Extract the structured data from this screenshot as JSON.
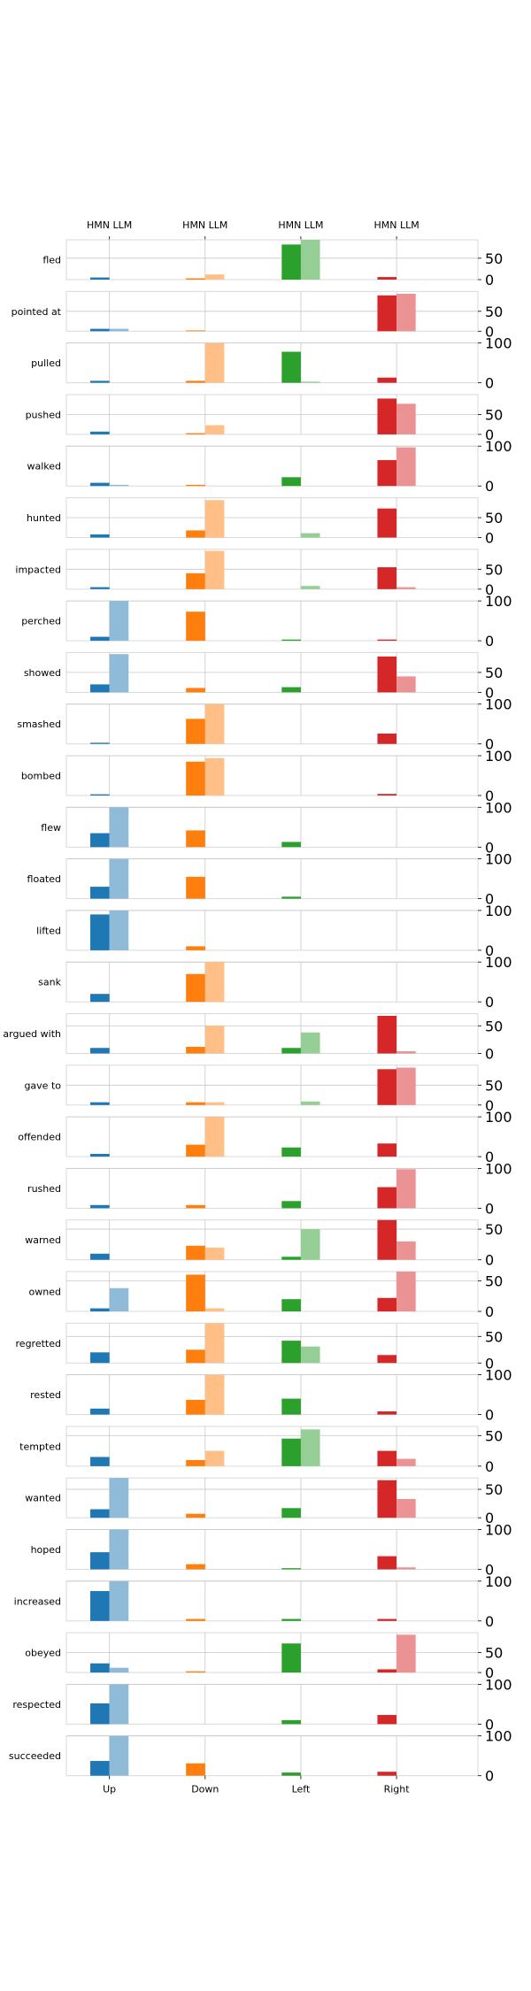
{
  "chart_data": {
    "type": "bar",
    "top_tick_label": "HMN LLM",
    "directions": [
      "Up",
      "Down",
      "Left",
      "Right"
    ],
    "direction_colors": {
      "strong": [
        "#1f77b4",
        "#ff7f0e",
        "#2ca02c",
        "#d62728"
      ],
      "light": [
        "#8fbbd9",
        "#ffbf86",
        "#95cf95",
        "#eb9394"
      ]
    },
    "series": [
      {
        "name": "HMN",
        "style": "strong"
      },
      {
        "name": "LLM",
        "style": "light"
      }
    ],
    "grid": true,
    "rows": [
      {
        "verb": "fled",
        "ylim": [
          0,
          93
        ],
        "yticks": [
          0,
          50
        ],
        "hmn": [
          5,
          3,
          82,
          6
        ],
        "llm": [
          0,
          12,
          93,
          0
        ]
      },
      {
        "verb": "pointed at",
        "ylim": [
          0,
          100
        ],
        "yticks": [
          0,
          50
        ],
        "hmn": [
          6,
          2,
          0,
          90
        ],
        "llm": [
          6,
          0,
          0,
          94
        ]
      },
      {
        "verb": "pulled",
        "ylim": [
          0,
          100
        ],
        "yticks": [
          0,
          100
        ],
        "hmn": [
          5,
          5,
          78,
          13
        ],
        "llm": [
          0,
          100,
          3,
          0
        ]
      },
      {
        "verb": "pushed",
        "ylim": [
          0,
          100
        ],
        "yticks": [
          0,
          50
        ],
        "hmn": [
          7,
          3,
          0,
          90
        ],
        "llm": [
          0,
          23,
          0,
          77
        ]
      },
      {
        "verb": "walked",
        "ylim": [
          0,
          100
        ],
        "yticks": [
          0,
          100
        ],
        "hmn": [
          8,
          3,
          22,
          65
        ],
        "llm": [
          3,
          0,
          0,
          97
        ]
      },
      {
        "verb": "hunted",
        "ylim": [
          0,
          100
        ],
        "yticks": [
          0,
          50
        ],
        "hmn": [
          8,
          18,
          0,
          73
        ],
        "llm": [
          0,
          94,
          11,
          0
        ]
      },
      {
        "verb": "impacted",
        "ylim": [
          0,
          100
        ],
        "yticks": [
          0,
          50
        ],
        "hmn": [
          5,
          40,
          0,
          55
        ],
        "llm": [
          0,
          96,
          8,
          5
        ]
      },
      {
        "verb": "perched",
        "ylim": [
          0,
          100
        ],
        "yticks": [
          0,
          100
        ],
        "hmn": [
          10,
          73,
          3,
          3
        ],
        "llm": [
          100,
          0,
          0,
          0
        ]
      },
      {
        "verb": "showed",
        "ylim": [
          0,
          100
        ],
        "yticks": [
          0,
          50
        ],
        "hmn": [
          20,
          11,
          13,
          90
        ],
        "llm": [
          96,
          0,
          0,
          40
        ]
      },
      {
        "verb": "smashed",
        "ylim": [
          0,
          100
        ],
        "yticks": [
          0,
          100
        ],
        "hmn": [
          3,
          63,
          0,
          26
        ],
        "llm": [
          0,
          100,
          0,
          0
        ]
      },
      {
        "verb": "bombed",
        "ylim": [
          0,
          100
        ],
        "yticks": [
          0,
          100
        ],
        "hmn": [
          3,
          85,
          0,
          4
        ],
        "llm": [
          0,
          94,
          0,
          0
        ]
      },
      {
        "verb": "flew",
        "ylim": [
          0,
          100
        ],
        "yticks": [
          0,
          100
        ],
        "hmn": [
          35,
          42,
          13,
          0
        ],
        "llm": [
          100,
          0,
          0,
          0
        ]
      },
      {
        "verb": "floated",
        "ylim": [
          0,
          100
        ],
        "yticks": [
          0,
          100
        ],
        "hmn": [
          30,
          55,
          5,
          0
        ],
        "llm": [
          100,
          0,
          0,
          0
        ]
      },
      {
        "verb": "lifted",
        "ylim": [
          0,
          100
        ],
        "yticks": [
          0,
          100
        ],
        "hmn": [
          90,
          10,
          0,
          0
        ],
        "llm": [
          100,
          0,
          0,
          0
        ]
      },
      {
        "verb": "sank",
        "ylim": [
          0,
          100
        ],
        "yticks": [
          0,
          100
        ],
        "hmn": [
          20,
          70,
          0,
          0
        ],
        "llm": [
          0,
          100,
          0,
          0
        ]
      },
      {
        "verb": "argued with",
        "ylim": [
          0,
          72
        ],
        "yticks": [
          0,
          50
        ],
        "hmn": [
          10,
          12,
          10,
          68
        ],
        "llm": [
          0,
          50,
          38,
          4
        ]
      },
      {
        "verb": "gave to",
        "ylim": [
          0,
          100
        ],
        "yticks": [
          0,
          50
        ],
        "hmn": [
          7,
          7,
          0,
          90
        ],
        "llm": [
          0,
          7,
          9,
          94
        ]
      },
      {
        "verb": "offended",
        "ylim": [
          0,
          100
        ],
        "yticks": [
          0,
          100
        ],
        "hmn": [
          7,
          30,
          23,
          33
        ],
        "llm": [
          0,
          100,
          0,
          0
        ]
      },
      {
        "verb": "rushed",
        "ylim": [
          0,
          100
        ],
        "yticks": [
          0,
          100
        ],
        "hmn": [
          8,
          8,
          18,
          53
        ],
        "llm": [
          0,
          0,
          0,
          98
        ]
      },
      {
        "verb": "warned",
        "ylim": [
          0,
          65
        ],
        "yticks": [
          0,
          50
        ],
        "hmn": [
          10,
          23,
          5,
          65
        ],
        "llm": [
          0,
          20,
          50,
          30
        ]
      },
      {
        "verb": "owned",
        "ylim": [
          0,
          65
        ],
        "yticks": [
          0,
          50
        ],
        "hmn": [
          5,
          60,
          20,
          22
        ],
        "llm": [
          38,
          5,
          0,
          65
        ]
      },
      {
        "verb": "regretted",
        "ylim": [
          0,
          75
        ],
        "yticks": [
          0,
          50
        ],
        "hmn": [
          20,
          25,
          42,
          15
        ],
        "llm": [
          0,
          75,
          31,
          0
        ]
      },
      {
        "verb": "rested",
        "ylim": [
          0,
          100
        ],
        "yticks": [
          0,
          100
        ],
        "hmn": [
          15,
          37,
          40,
          8
        ],
        "llm": [
          0,
          100,
          0,
          0
        ]
      },
      {
        "verb": "tempted",
        "ylim": [
          0,
          65
        ],
        "yticks": [
          0,
          50
        ],
        "hmn": [
          15,
          10,
          45,
          25
        ],
        "llm": [
          0,
          25,
          60,
          12
        ]
      },
      {
        "verb": "wanted",
        "ylim": [
          0,
          70
        ],
        "yticks": [
          0,
          50
        ],
        "hmn": [
          15,
          7,
          17,
          66
        ],
        "llm": [
          70,
          0,
          0,
          33
        ]
      },
      {
        "verb": "hoped",
        "ylim": [
          0,
          100
        ],
        "yticks": [
          0,
          100
        ],
        "hmn": [
          43,
          13,
          3,
          33
        ],
        "llm": [
          100,
          0,
          0,
          5
        ]
      },
      {
        "verb": "increased",
        "ylim": [
          0,
          100
        ],
        "yticks": [
          0,
          100
        ],
        "hmn": [
          75,
          5,
          5,
          5
        ],
        "llm": [
          100,
          0,
          0,
          0
        ]
      },
      {
        "verb": "obeyed",
        "ylim": [
          0,
          100
        ],
        "yticks": [
          0,
          50
        ],
        "hmn": [
          23,
          3,
          73,
          8
        ],
        "llm": [
          12,
          0,
          0,
          95
        ]
      },
      {
        "verb": "respected",
        "ylim": [
          0,
          100
        ],
        "yticks": [
          0,
          100
        ],
        "hmn": [
          52,
          0,
          10,
          23
        ],
        "llm": [
          100,
          0,
          0,
          0
        ]
      },
      {
        "verb": "succeeded",
        "ylim": [
          0,
          100
        ],
        "yticks": [
          0,
          100
        ],
        "hmn": [
          37,
          31,
          8,
          10
        ],
        "llm": [
          100,
          0,
          0,
          0
        ]
      }
    ]
  }
}
